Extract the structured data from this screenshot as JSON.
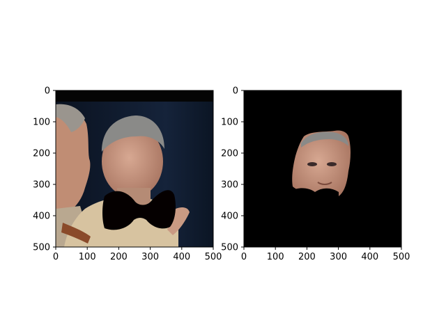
{
  "figure": {
    "background": "#ffffff",
    "panels": [
      {
        "name": "left",
        "xticks": [
          "0",
          "100",
          "200",
          "300",
          "400",
          "500"
        ],
        "yticks": [
          "0",
          "100",
          "200",
          "300",
          "400",
          "500"
        ],
        "content": "photo of two men in uniform with a black bowtie-shaped mask over the lower face of the right man"
      },
      {
        "name": "right",
        "xticks": [
          "0",
          "100",
          "200",
          "300",
          "400",
          "500"
        ],
        "yticks": [
          "0",
          "100",
          "200",
          "300",
          "400",
          "500"
        ],
        "content": "segmented face on black background with lower area masked"
      }
    ],
    "colors": {
      "panel_background": "#000000",
      "photo_background": "#0f1a2a",
      "skin": "#c99a83",
      "hair": "#8a8a88",
      "uniform": "#d7c3a0"
    }
  }
}
